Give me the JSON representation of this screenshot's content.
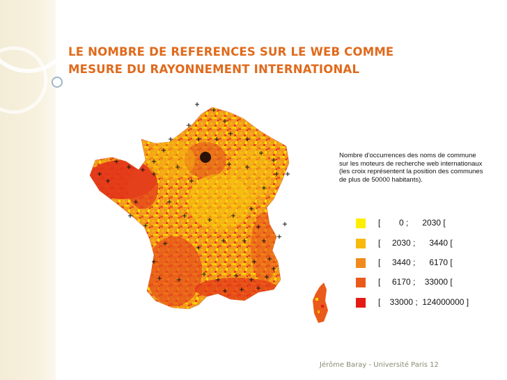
{
  "slide": {
    "title_lines": [
      "LE NOMBRE DE REFERENCES SUR LE WEB COMME",
      "MESURE DU RAYONNEMENT INTERNATIONAL"
    ],
    "footer": "Jérôme Baray - Université Paris 12"
  },
  "legend": {
    "description_lines": [
      "Nombre d'occurrences des noms de commune",
      "sur les moteurs de recherche web internationaux",
      "(les croix représentent la position des communes",
      "de plus de 50000 habitants)."
    ],
    "classes": [
      {
        "range": "[        0 ;      2030 [",
        "color": "#ffee00"
      },
      {
        "range": "[     2030 ;      3440 [",
        "color": "#f6b90c"
      },
      {
        "range": "[     3440 ;      6170 [",
        "color": "#f08a1c"
      },
      {
        "range": "[     6170 ;    33000 [",
        "color": "#ea5a1a"
      },
      {
        "range": "[    33000 ;  124000000 ]",
        "color": "#e41a14"
      }
    ]
  },
  "colors": {
    "title": "#e06a1c",
    "background": "#ffffff",
    "side_band": "#f3ecd6"
  }
}
